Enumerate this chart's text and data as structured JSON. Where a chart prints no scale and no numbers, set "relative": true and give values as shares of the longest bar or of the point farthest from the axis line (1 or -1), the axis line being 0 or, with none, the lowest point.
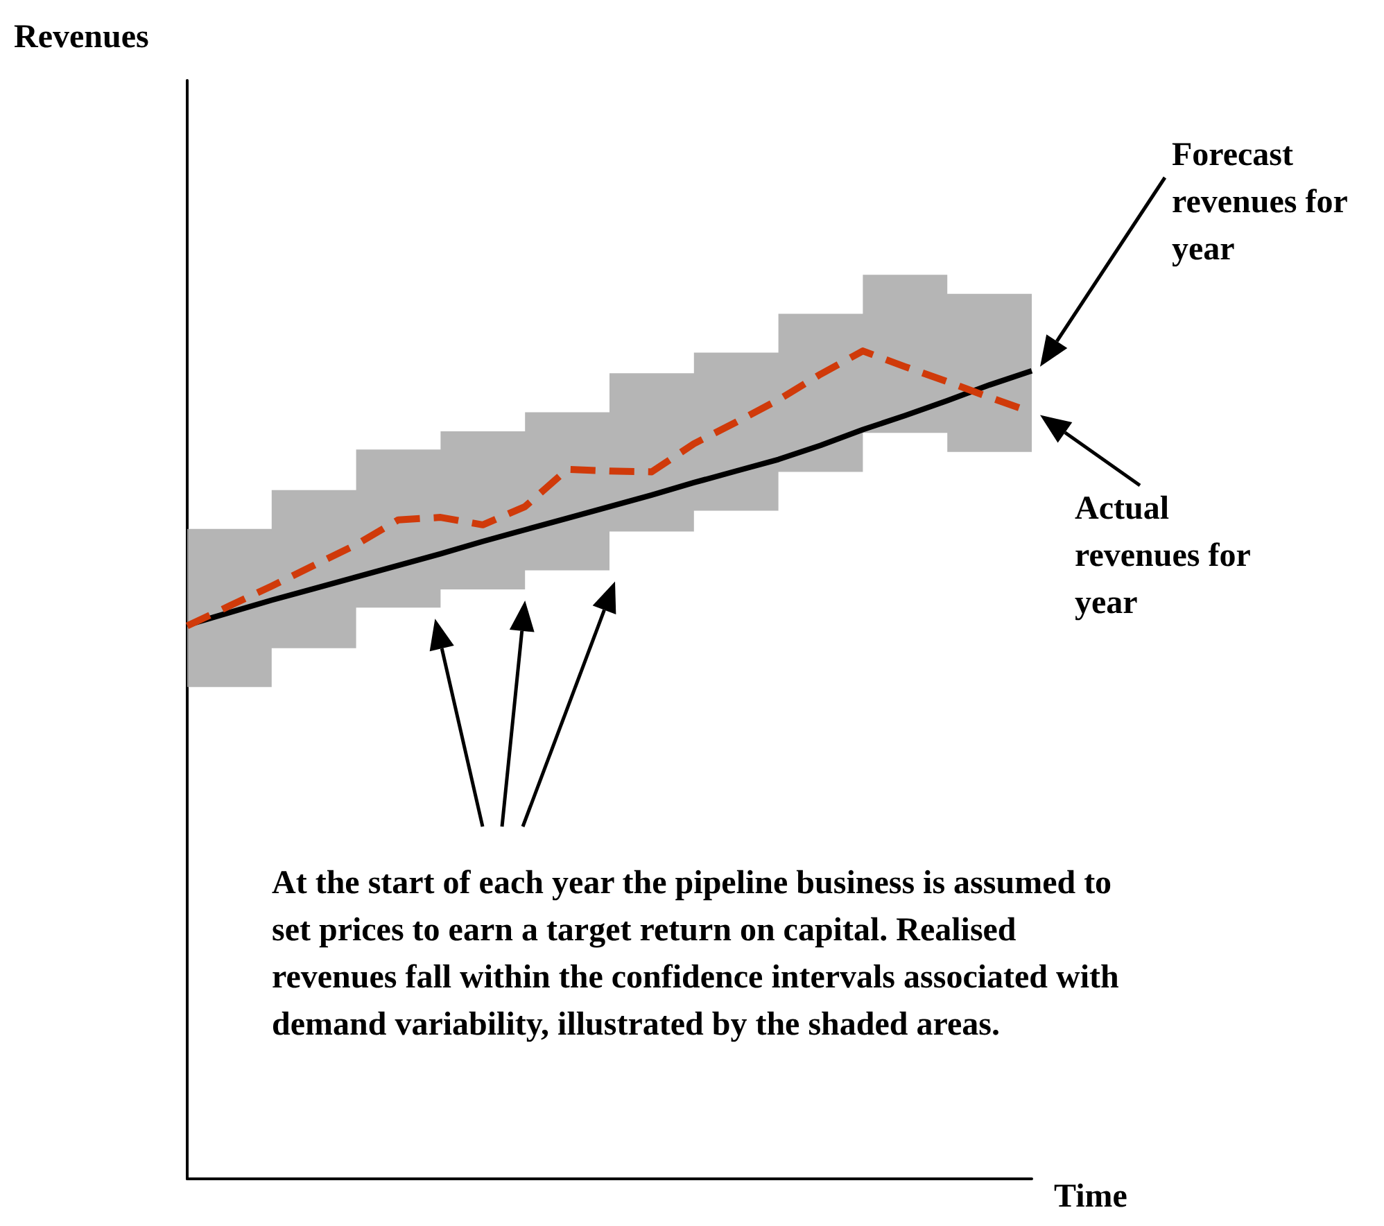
{
  "chart_data": {
    "type": "line",
    "relative": true,
    "marker": "none",
    "xlabel": "Time",
    "categories": [
      null,
      null,
      null,
      null,
      null,
      null,
      null,
      null,
      null,
      null,
      null,
      null,
      null,
      null,
      null,
      null,
      null,
      null,
      null,
      null,
      null
    ],
    "series": [
      {
        "color": "#000000",
        "line_style": "solid",
        "values": [
          0.669,
          0.684,
          0.699,
          0.713,
          0.727,
          0.741,
          0.755,
          0.77,
          0.784,
          0.798,
          0.812,
          0.826,
          0.841,
          0.855,
          0.869,
          0.886,
          0.905,
          0.922,
          0.94,
          0.959,
          0.976
        ],
        "lower": [
          0.594,
          0.594,
          0.594,
          0.641,
          0.641,
          0.69,
          0.69,
          0.712,
          0.712,
          0.735,
          0.735,
          0.782,
          0.782,
          0.807,
          0.807,
          0.854,
          0.854,
          0.901,
          0.901,
          0.878,
          0.878
        ],
        "upper": [
          0.785,
          0.785,
          0.785,
          0.832,
          0.832,
          0.881,
          0.881,
          0.903,
          0.903,
          0.926,
          0.926,
          0.973,
          0.973,
          0.998,
          0.998,
          1.045,
          1.045,
          1.092,
          1.092,
          1.069,
          1.069
        ]
      },
      {
        "color": "#d03a0a",
        "line_style": "dashed",
        "values": [
          0.668,
          0.692,
          0.716,
          0.741,
          0.766,
          0.796,
          0.799,
          0.79,
          0.812,
          0.857,
          0.855,
          0.854,
          0.888,
          0.914,
          0.941,
          0.972,
          1.0,
          0.981,
          0.963,
          0.944,
          0.926
        ]
      }
    ],
    "annotations": [
      "Forecast revenues for year",
      "Actual revenues for year",
      "At the start of each year the pipeline business is assumed to set prices to earn a target return on capital. Realised revenues fall within the confidence intervals associated with demand variability, illustrated by the shaded areas.",
      "Revenues"
    ]
  }
}
